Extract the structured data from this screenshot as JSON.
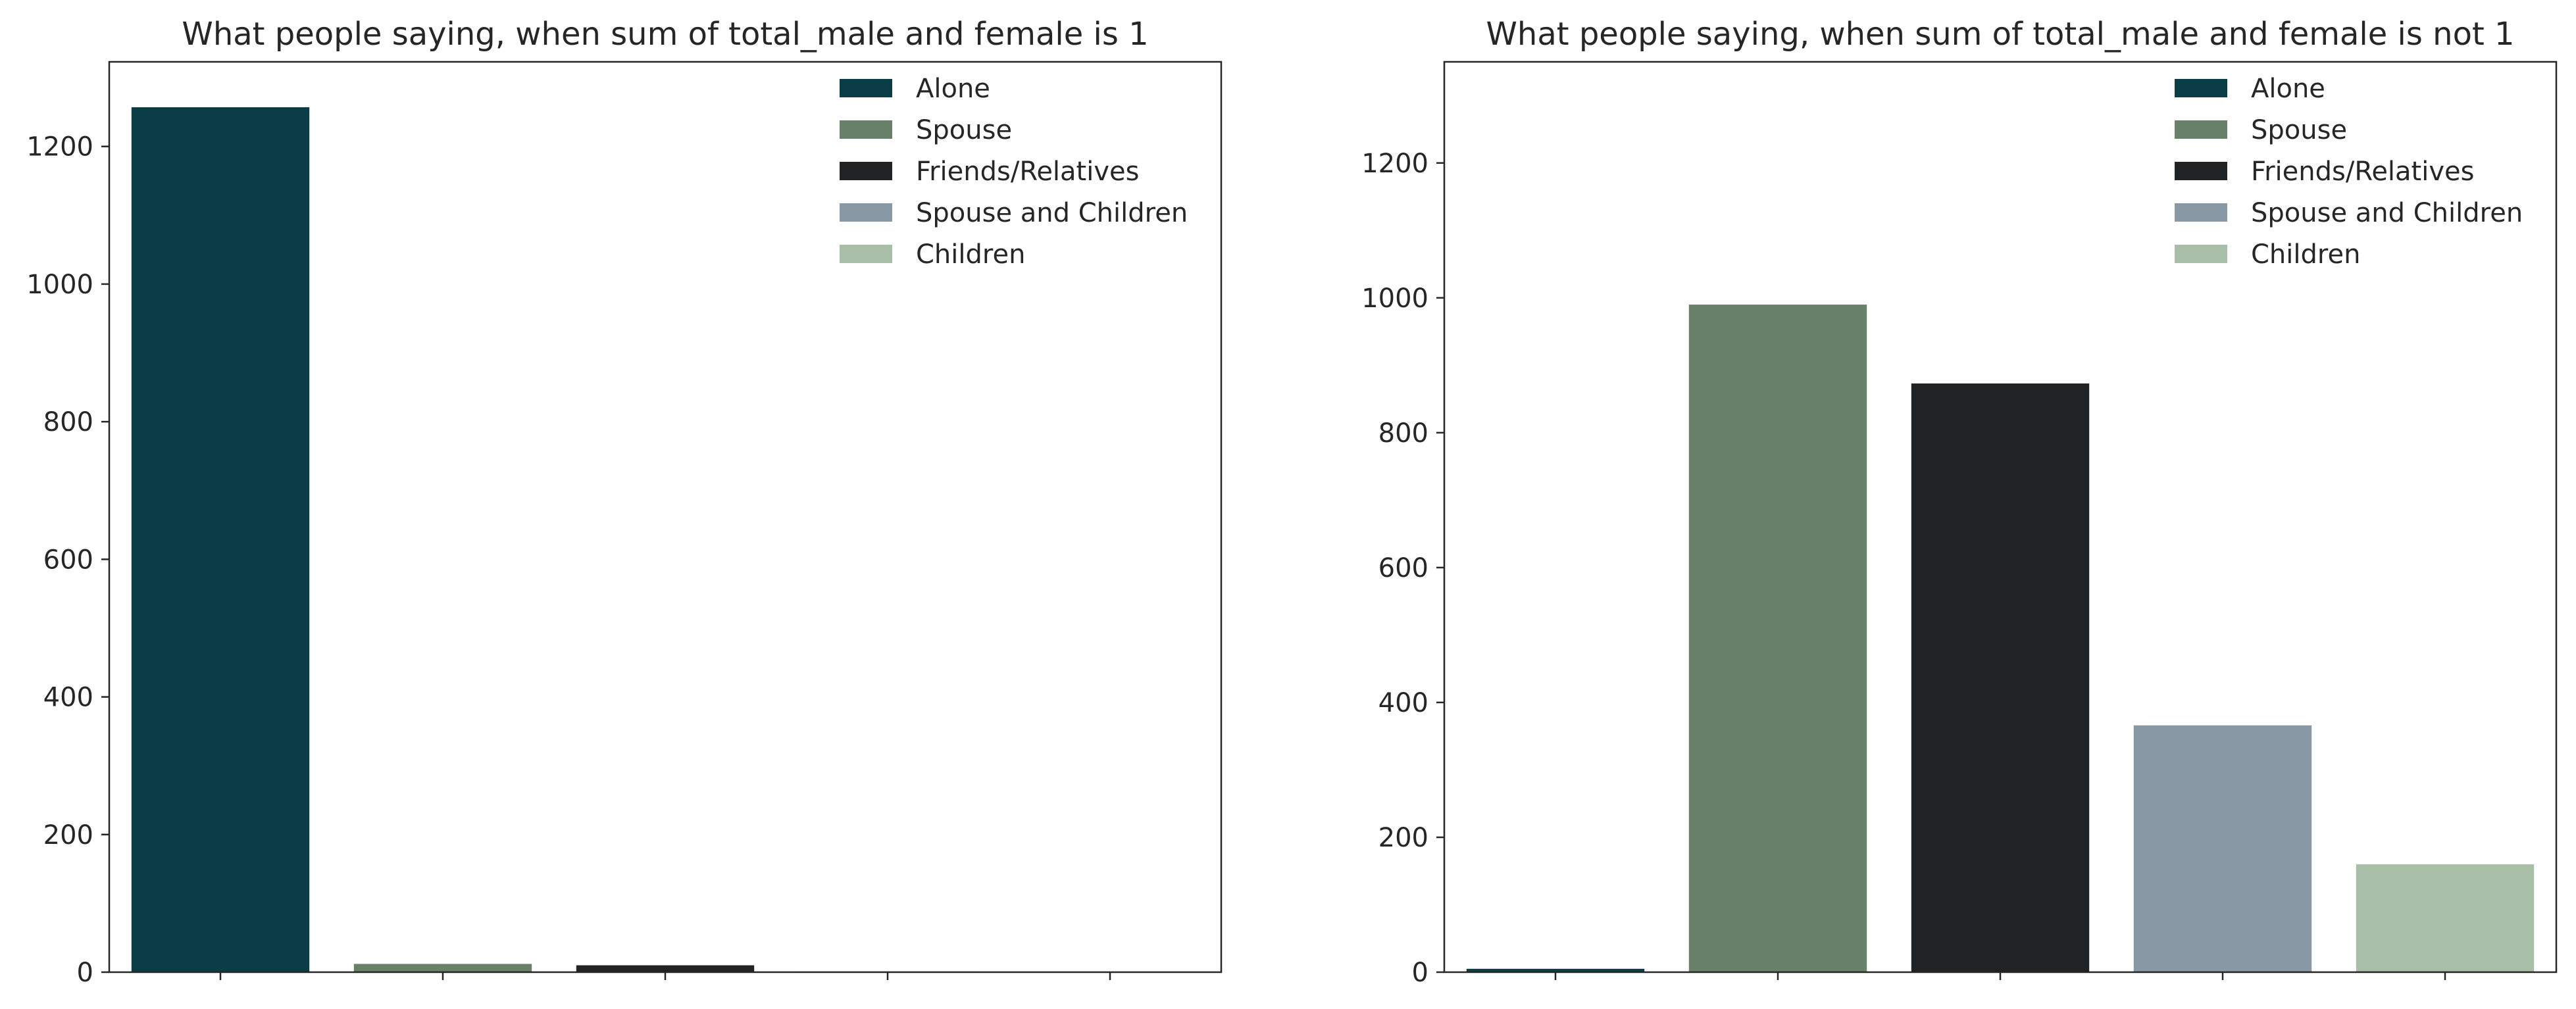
{
  "chart_data": [
    {
      "type": "bar",
      "title": "What people saying, when sum of total_male and female is 1",
      "categories": [
        "Alone",
        "Spouse",
        "Friends/Relatives",
        "Spouse and Children",
        "Children"
      ],
      "values": [
        1257,
        12,
        10,
        1,
        0
      ],
      "colors": [
        "#0b3d47",
        "#6a8169",
        "#212224",
        "#8898a4",
        "#a9bea6"
      ],
      "yticks": [
        0,
        200,
        400,
        600,
        800,
        1000,
        1200
      ],
      "ylim": [
        0,
        1323
      ],
      "xlabel": "",
      "ylabel": "",
      "show_x_tick_labels": false,
      "legend": {
        "position": "top-right",
        "entries": [
          "Alone",
          "Spouse",
          "Friends/Relatives",
          "Spouse and Children",
          "Children"
        ]
      },
      "grid": false
    },
    {
      "type": "bar",
      "title": "What people saying, when sum of total_male and female is not 1",
      "categories": [
        "Alone",
        "Spouse",
        "Friends/Relatives",
        "Spouse and Children",
        "Children"
      ],
      "values": [
        5,
        990,
        873,
        366,
        160
      ],
      "colors": [
        "#0b3d47",
        "#6a8169",
        "#212224",
        "#8898a4",
        "#a9bea6"
      ],
      "yticks": [
        0,
        200,
        400,
        600,
        800,
        1000,
        1200
      ],
      "ylim": [
        0,
        1350
      ],
      "xlabel": "",
      "ylabel": "",
      "show_x_tick_labels": false,
      "legend": {
        "position": "top-right",
        "entries": [
          "Alone",
          "Spouse",
          "Friends/Relatives",
          "Spouse and Children",
          "Children"
        ]
      },
      "grid": false
    }
  ]
}
